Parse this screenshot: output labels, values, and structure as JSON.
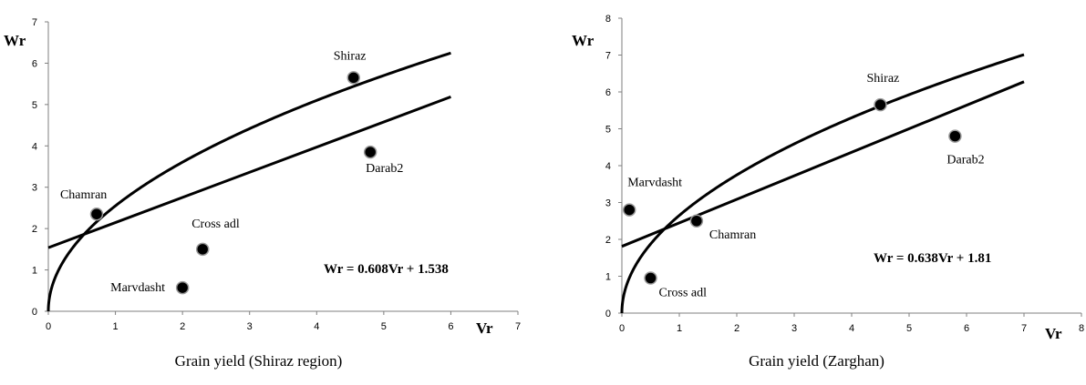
{
  "chart_data": [
    {
      "type": "scatter",
      "caption": "Grain yield (Shiraz region)",
      "xlabel": "Vr",
      "ylabel": "Wr",
      "xlim": [
        0,
        7
      ],
      "ylim": [
        0,
        7
      ],
      "xticks": [
        "0",
        "1",
        "2",
        "3",
        "4",
        "5",
        "6",
        "7"
      ],
      "yticks": [
        "0",
        "1",
        "2",
        "3",
        "4",
        "5",
        "6",
        "7"
      ],
      "points": [
        {
          "label": "Chamran",
          "x": 0.72,
          "y": 2.35
        },
        {
          "label": "Cross adl",
          "x": 2.3,
          "y": 1.5
        },
        {
          "label": "Marvdasht",
          "x": 2.0,
          "y": 0.57
        },
        {
          "label": "Shiraz",
          "x": 4.55,
          "y": 5.65
        },
        {
          "label": "Darab2",
          "x": 4.8,
          "y": 3.85
        }
      ],
      "regression": {
        "equation": "Wr = 0.608Vr + 1.538",
        "slope": 0.608,
        "intercept": 1.538
      },
      "parabola": {
        "coefficient": 2.55
      },
      "grid": false,
      "legend": "none"
    },
    {
      "type": "scatter",
      "caption": "Grain yield (Zarghan)",
      "xlabel": "Vr",
      "ylabel": "Wr",
      "xlim": [
        0,
        8
      ],
      "ylim": [
        0,
        8
      ],
      "xticks": [
        "0",
        "1",
        "2",
        "3",
        "4",
        "5",
        "6",
        "7",
        "8"
      ],
      "yticks": [
        "0",
        "1",
        "2",
        "3",
        "4",
        "5",
        "6",
        "7",
        "8"
      ],
      "points": [
        {
          "label": "Marvdasht",
          "x": 0.13,
          "y": 2.8
        },
        {
          "label": "Cross adl",
          "x": 0.5,
          "y": 0.95
        },
        {
          "label": "Chamran",
          "x": 1.3,
          "y": 2.5
        },
        {
          "label": "Shiraz",
          "x": 4.5,
          "y": 5.65
        },
        {
          "label": "Darab2",
          "x": 5.8,
          "y": 4.8
        }
      ],
      "regression": {
        "equation": "Wr = 0.638Vr + 1.81",
        "slope": 0.638,
        "intercept": 1.81
      },
      "parabola": {
        "coefficient": 2.65
      },
      "grid": false,
      "legend": "none"
    }
  ]
}
